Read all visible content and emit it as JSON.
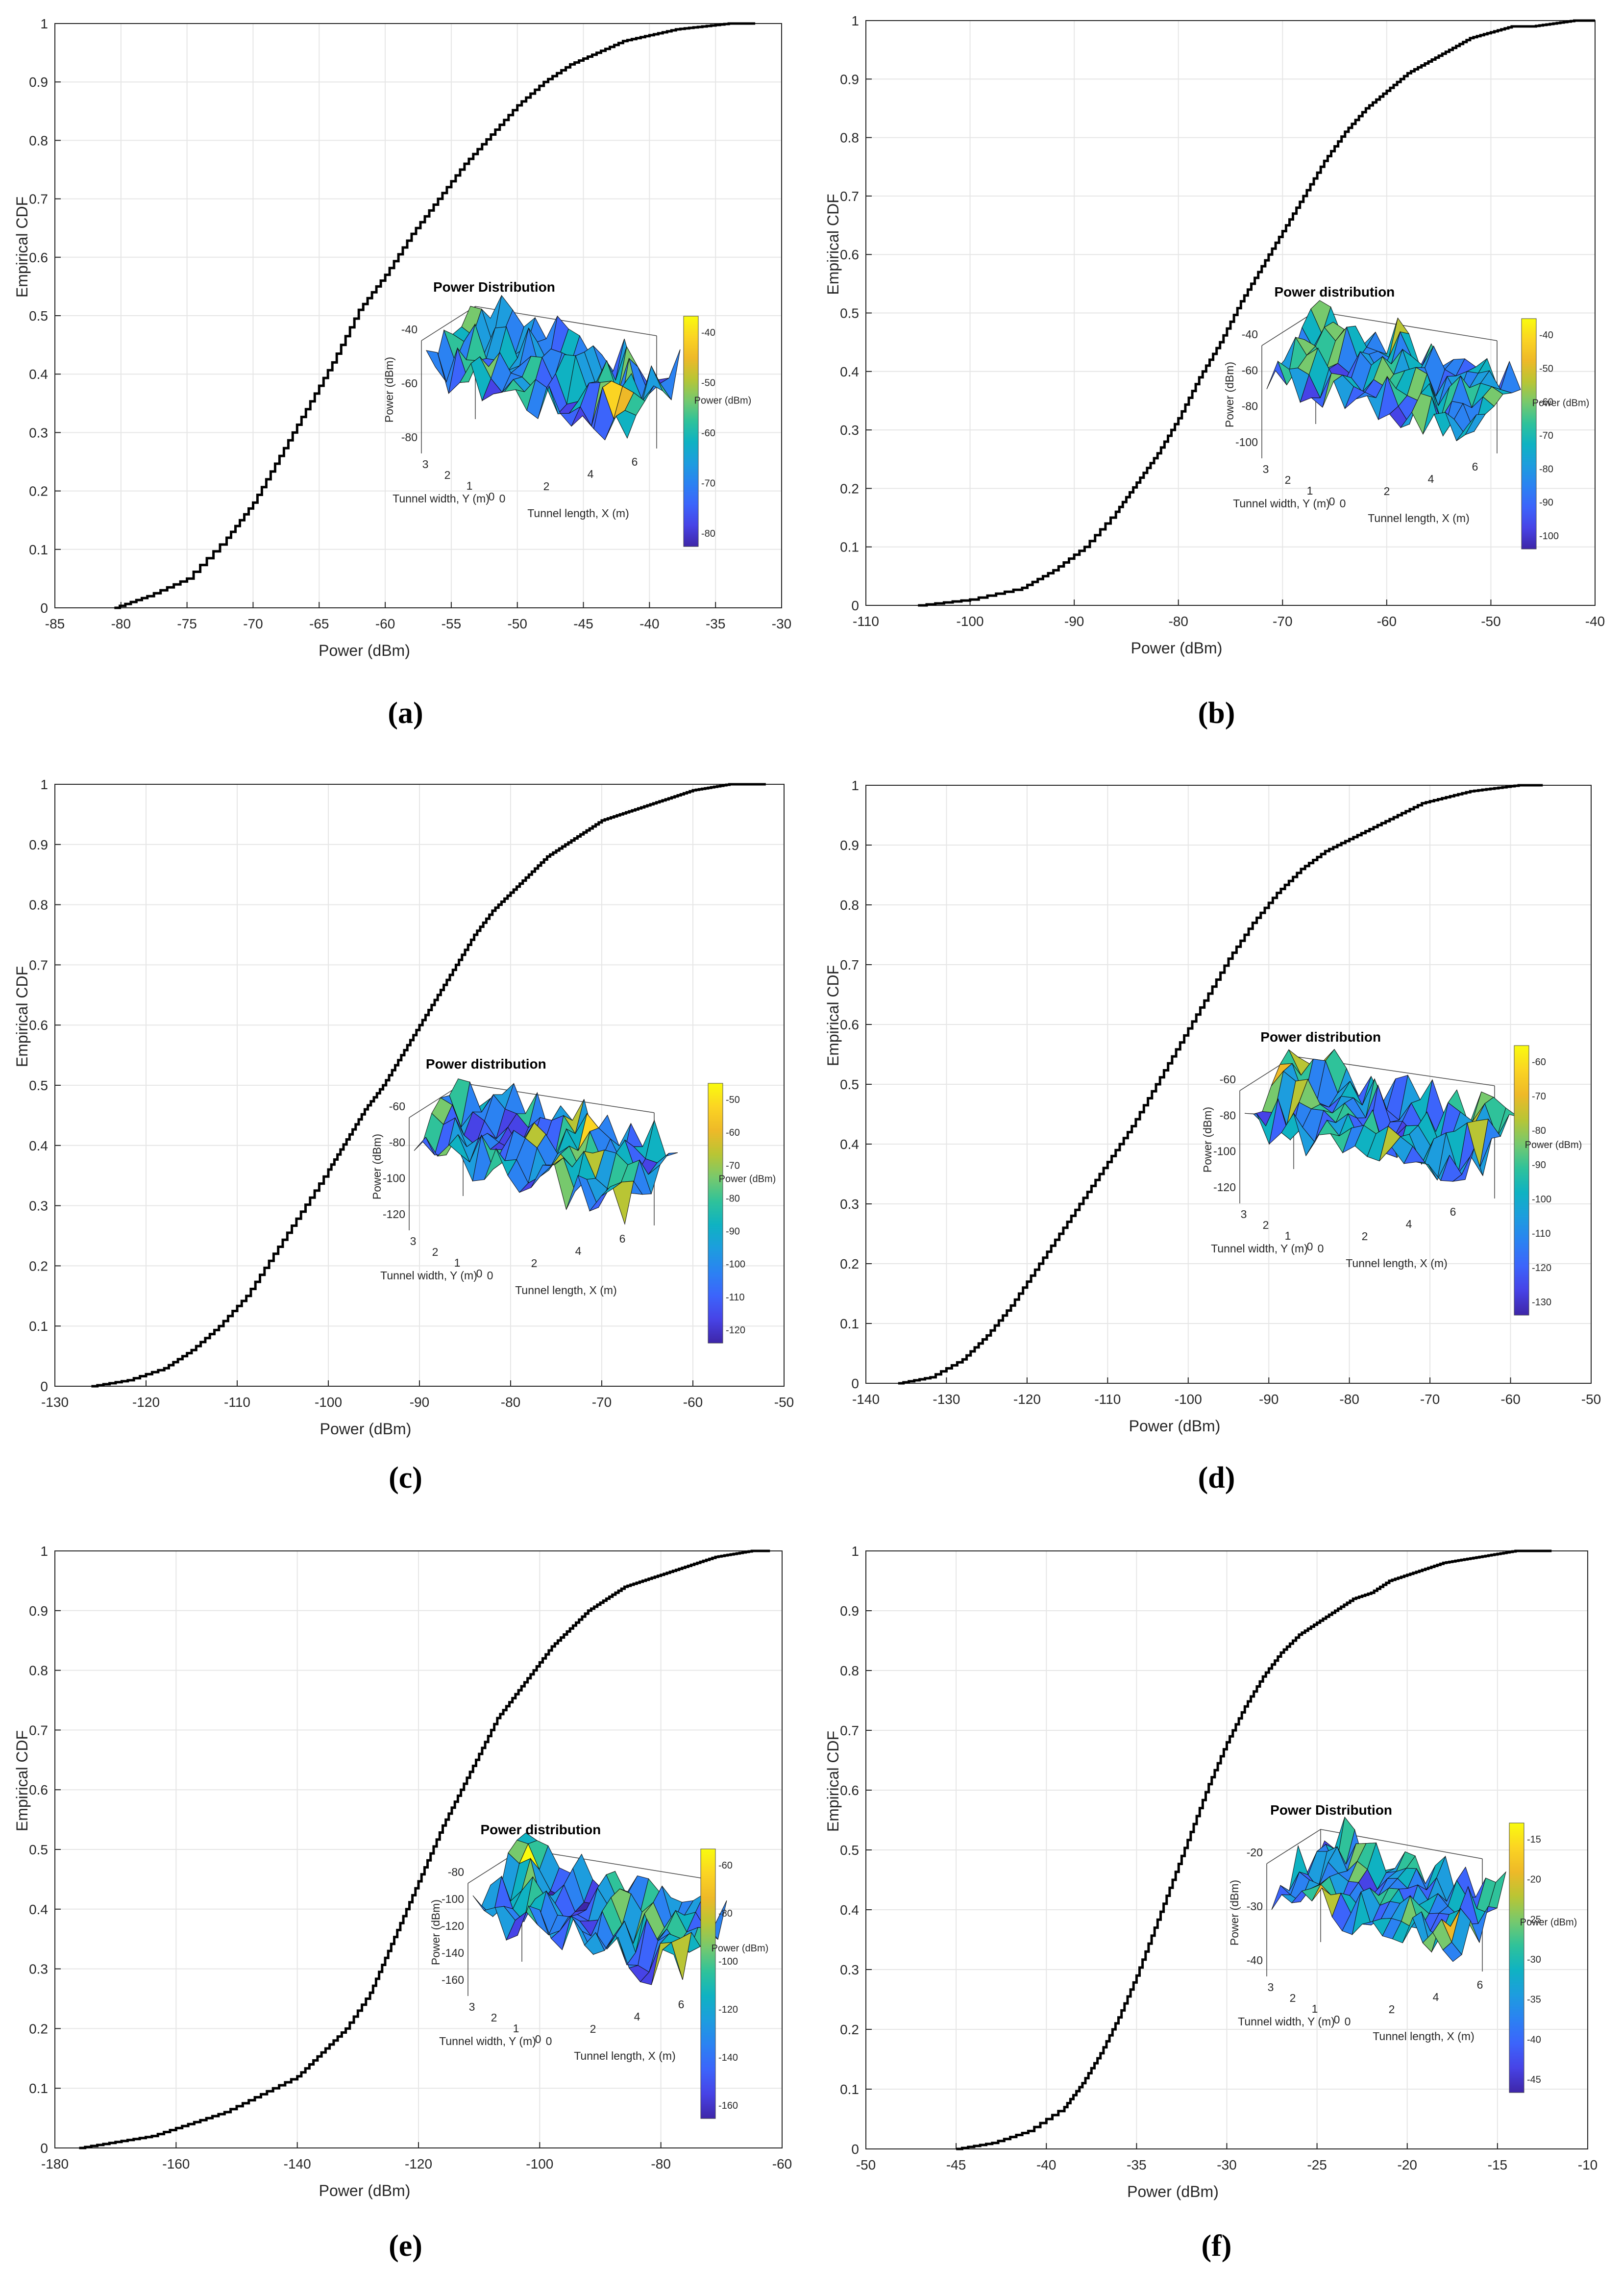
{
  "chart_data": [
    {
      "type": "line",
      "panel_label": "a",
      "xlabel": "Power (dBm)",
      "ylabel": "Empirical CDF",
      "xlim": [
        -85,
        -30
      ],
      "ylim": [
        0,
        1
      ],
      "xticks": [
        -85,
        -80,
        -75,
        -70,
        -65,
        -60,
        -55,
        -50,
        -45,
        -40,
        -35,
        -30
      ],
      "yticks": [
        0,
        0.1,
        0.2,
        0.3,
        0.4,
        0.5,
        0.6,
        0.7,
        0.8,
        0.9,
        1
      ],
      "grid": true,
      "series": [
        {
          "name": "Empirical CDF",
          "x": [
            -80.5,
            -78,
            -75,
            -72,
            -70,
            -68,
            -66,
            -64,
            -62,
            -60,
            -58,
            -56,
            -54,
            -52,
            -50,
            -48,
            -46,
            -44,
            -42,
            -40,
            -38,
            -36,
            -34,
            -32
          ],
          "y": [
            0,
            0.02,
            0.05,
            0.12,
            0.18,
            0.26,
            0.34,
            0.42,
            0.51,
            0.57,
            0.64,
            0.7,
            0.76,
            0.81,
            0.86,
            0.9,
            0.93,
            0.95,
            0.97,
            0.98,
            0.99,
            0.995,
            1.0,
            1.0
          ]
        }
      ],
      "inset": {
        "title": "Power Distribution",
        "zlabel": "Power (dBm)",
        "zticks": [
          -40,
          -60,
          -80
        ],
        "ylabel": "Tunnel width, Y (m)",
        "yticks": [
          3,
          2,
          1,
          0
        ],
        "xlabel": "Tunnel length, X (m)",
        "xticks": [
          0,
          2,
          4,
          6
        ],
        "colorbar_label": "Power (dBm)",
        "colorbar_ticks": [
          -40,
          -50,
          -60,
          -70,
          -80
        ]
      },
      "caption": "(a)"
    },
    {
      "type": "line",
      "panel_label": "b",
      "xlabel": "Power (dBm)",
      "ylabel": "Empirical CDF",
      "xlim": [
        -110,
        -40
      ],
      "ylim": [
        0,
        1
      ],
      "xticks": [
        -110,
        -100,
        -90,
        -80,
        -70,
        -60,
        -50,
        -40
      ],
      "yticks": [
        0,
        0.1,
        0.2,
        0.3,
        0.4,
        0.5,
        0.6,
        0.7,
        0.8,
        0.9,
        1
      ],
      "grid": true,
      "series": [
        {
          "name": "Empirical CDF",
          "x": [
            -105,
            -100,
            -95,
            -92,
            -89,
            -86,
            -84,
            -82,
            -80,
            -78,
            -76,
            -74,
            -72,
            -70,
            -68,
            -66,
            -64,
            -62,
            -60,
            -58,
            -56,
            -54,
            -52,
            -50,
            -48,
            -46,
            -44,
            -42,
            -40
          ],
          "y": [
            0,
            0.01,
            0.03,
            0.06,
            0.1,
            0.16,
            0.21,
            0.26,
            0.32,
            0.39,
            0.45,
            0.52,
            0.58,
            0.64,
            0.7,
            0.76,
            0.81,
            0.85,
            0.88,
            0.91,
            0.93,
            0.95,
            0.97,
            0.98,
            0.99,
            0.99,
            0.995,
            1.0,
            1.0
          ]
        }
      ],
      "inset": {
        "title": "Power distribution",
        "zlabel": "Power (dBm)",
        "zticks": [
          -40,
          -60,
          -80,
          -100
        ],
        "ylabel": "Tunnel width, Y (m)",
        "yticks": [
          3,
          2,
          1,
          0
        ],
        "xlabel": "Tunnel length, X (m)",
        "xticks": [
          0,
          2,
          4,
          6
        ],
        "colorbar_label": "Power (dBm)",
        "colorbar_ticks": [
          -40,
          -50,
          -60,
          -70,
          -80,
          -90,
          -100
        ]
      },
      "caption": "(b)"
    },
    {
      "type": "line",
      "panel_label": "c",
      "xlabel": "Power (dBm)",
      "ylabel": "Empirical CDF",
      "xlim": [
        -130,
        -50
      ],
      "ylim": [
        0,
        1
      ],
      "xticks": [
        -130,
        -120,
        -110,
        -100,
        -90,
        -80,
        -70,
        -60,
        -50
      ],
      "yticks": [
        0,
        0.1,
        0.2,
        0.3,
        0.4,
        0.5,
        0.6,
        0.7,
        0.8,
        0.9,
        1
      ],
      "grid": true,
      "series": [
        {
          "name": "Empirical CDF",
          "x": [
            -126,
            -122,
            -118,
            -115,
            -112,
            -109,
            -106,
            -103,
            -100,
            -98,
            -96,
            -94,
            -92,
            -90,
            -88,
            -86,
            -84,
            -82,
            -80,
            -78,
            -76,
            -74,
            -72,
            -70,
            -68,
            -66,
            -64,
            -62,
            -60,
            -58,
            -56,
            -52
          ],
          "y": [
            0,
            0.01,
            0.03,
            0.06,
            0.1,
            0.15,
            0.22,
            0.29,
            0.36,
            0.41,
            0.46,
            0.5,
            0.55,
            0.6,
            0.65,
            0.7,
            0.75,
            0.79,
            0.82,
            0.85,
            0.88,
            0.9,
            0.92,
            0.94,
            0.95,
            0.96,
            0.97,
            0.98,
            0.99,
            0.995,
            1.0,
            1.0
          ]
        }
      ],
      "inset": {
        "title": "Power distribution",
        "zlabel": "Power (dBm)",
        "zticks": [
          -60,
          -80,
          -100,
          -120
        ],
        "ylabel": "Tunnel width, Y (m)",
        "yticks": [
          3,
          2,
          1,
          0
        ],
        "xlabel": "Tunnel length, X (m)",
        "xticks": [
          0,
          2,
          4,
          6
        ],
        "colorbar_label": "Power (dBm)",
        "colorbar_ticks": [
          -50,
          -60,
          -70,
          -80,
          -90,
          -100,
          -110,
          -120
        ]
      },
      "caption": "(c)"
    },
    {
      "type": "line",
      "panel_label": "d",
      "xlabel": "Power (dBm)",
      "ylabel": "Empirical CDF",
      "xlim": [
        -140,
        -50
      ],
      "ylim": [
        0,
        1
      ],
      "xticks": [
        -140,
        -130,
        -120,
        -110,
        -100,
        -90,
        -80,
        -70,
        -60,
        -50
      ],
      "yticks": [
        0,
        0.1,
        0.2,
        0.3,
        0.4,
        0.5,
        0.6,
        0.7,
        0.8,
        0.9,
        1
      ],
      "grid": true,
      "series": [
        {
          "name": "Empirical CDF",
          "x": [
            -136,
            -132,
            -128,
            -125,
            -122,
            -119,
            -116,
            -113,
            -110,
            -107,
            -104,
            -101,
            -98,
            -95,
            -92,
            -89,
            -86,
            -83,
            -80,
            -77,
            -74,
            -71,
            -68,
            -65,
            -62,
            -59,
            -56
          ],
          "y": [
            0,
            0.01,
            0.04,
            0.08,
            0.13,
            0.19,
            0.25,
            0.31,
            0.37,
            0.43,
            0.5,
            0.57,
            0.64,
            0.71,
            0.77,
            0.82,
            0.86,
            0.89,
            0.91,
            0.93,
            0.95,
            0.97,
            0.98,
            0.99,
            0.995,
            1.0,
            1.0
          ]
        }
      ],
      "inset": {
        "title": "Power distribution",
        "zlabel": "Power (dBm)",
        "zticks": [
          -60,
          -80,
          -100,
          -120
        ],
        "ylabel": "Tunnel width, Y (m)",
        "yticks": [
          3,
          2,
          1,
          0
        ],
        "xlabel": "Tunnel length, X (m)",
        "xticks": [
          0,
          2,
          4,
          6
        ],
        "colorbar_label": "Power (dBm)",
        "colorbar_ticks": [
          -60,
          -70,
          -80,
          -90,
          -100,
          -110,
          -120,
          -130
        ]
      },
      "caption": "(d)"
    },
    {
      "type": "line",
      "panel_label": "e",
      "xlabel": "Power (dBm)",
      "ylabel": "Empirical CDF",
      "xlim": [
        -180,
        -60
      ],
      "ylim": [
        0,
        1
      ],
      "xticks": [
        -180,
        -160,
        -140,
        -120,
        -100,
        -80,
        -60
      ],
      "yticks": [
        0,
        0.1,
        0.2,
        0.3,
        0.4,
        0.5,
        0.6,
        0.7,
        0.8,
        0.9,
        1
      ],
      "grid": true,
      "series": [
        {
          "name": "Empirical CDF",
          "x": [
            -176,
            -170,
            -164,
            -158,
            -152,
            -146,
            -140,
            -136,
            -132,
            -128,
            -125,
            -122,
            -119,
            -116,
            -113,
            -110,
            -107,
            -104,
            -101,
            -98,
            -95,
            -92,
            -89,
            -86,
            -83,
            -80,
            -77,
            -74,
            -71,
            -68,
            -65,
            -62
          ],
          "y": [
            0,
            0.01,
            0.02,
            0.04,
            0.06,
            0.09,
            0.12,
            0.16,
            0.2,
            0.26,
            0.33,
            0.4,
            0.47,
            0.54,
            0.6,
            0.66,
            0.72,
            0.76,
            0.8,
            0.84,
            0.87,
            0.9,
            0.92,
            0.94,
            0.95,
            0.96,
            0.97,
            0.98,
            0.99,
            0.995,
            1.0,
            1.0
          ]
        }
      ],
      "inset": {
        "title": "Power distribution",
        "zlabel": "Power (dBm)",
        "zticks": [
          -80,
          -100,
          -120,
          -140,
          -160
        ],
        "ylabel": "Tunnel width, Y (m)",
        "yticks": [
          3,
          2,
          1,
          0
        ],
        "xlabel": "Tunnel length, X (m)",
        "xticks": [
          0,
          2,
          4,
          6
        ],
        "colorbar_label": "Power (dBm)",
        "colorbar_ticks": [
          -60,
          -80,
          -100,
          -120,
          -140,
          -160
        ]
      },
      "caption": "(e)"
    },
    {
      "type": "line",
      "panel_label": "f",
      "xlabel": "Power (dBm)",
      "ylabel": "Empirical CDF",
      "xlim": [
        -50,
        -10
      ],
      "ylim": [
        0,
        1
      ],
      "xticks": [
        -50,
        -45,
        -40,
        -35,
        -30,
        -25,
        -20,
        -15,
        -10
      ],
      "yticks": [
        0,
        0.1,
        0.2,
        0.3,
        0.4,
        0.5,
        0.6,
        0.7,
        0.8,
        0.9,
        1
      ],
      "grid": true,
      "series": [
        {
          "name": "Empirical CDF",
          "x": [
            -45,
            -43,
            -41,
            -39,
            -38,
            -37,
            -36,
            -35,
            -34,
            -33,
            -32,
            -31,
            -30,
            -29,
            -28,
            -27,
            -26,
            -25,
            -24,
            -23,
            -22,
            -21,
            -20,
            -19,
            -18,
            -17,
            -16,
            -15,
            -14,
            -13,
            -12
          ],
          "y": [
            0,
            0.01,
            0.03,
            0.07,
            0.11,
            0.16,
            0.22,
            0.29,
            0.37,
            0.45,
            0.53,
            0.61,
            0.68,
            0.74,
            0.79,
            0.83,
            0.86,
            0.88,
            0.9,
            0.92,
            0.93,
            0.95,
            0.96,
            0.97,
            0.98,
            0.985,
            0.99,
            0.995,
            1.0,
            1.0,
            1.0
          ]
        }
      ],
      "inset": {
        "title": "Power Distribution",
        "zlabel": "Power (dBm)",
        "zticks": [
          -20,
          -30,
          -40
        ],
        "ylabel": "Tunnel width, Y (m)",
        "yticks": [
          3,
          2,
          1,
          0
        ],
        "xlabel": "Tunnel length, X (m)",
        "xticks": [
          0,
          2,
          4,
          6
        ],
        "colorbar_label": "Power (dBm)",
        "colorbar_ticks": [
          -15,
          -20,
          -25,
          -30,
          -35,
          -40,
          -45
        ]
      },
      "caption": "(f)"
    }
  ]
}
